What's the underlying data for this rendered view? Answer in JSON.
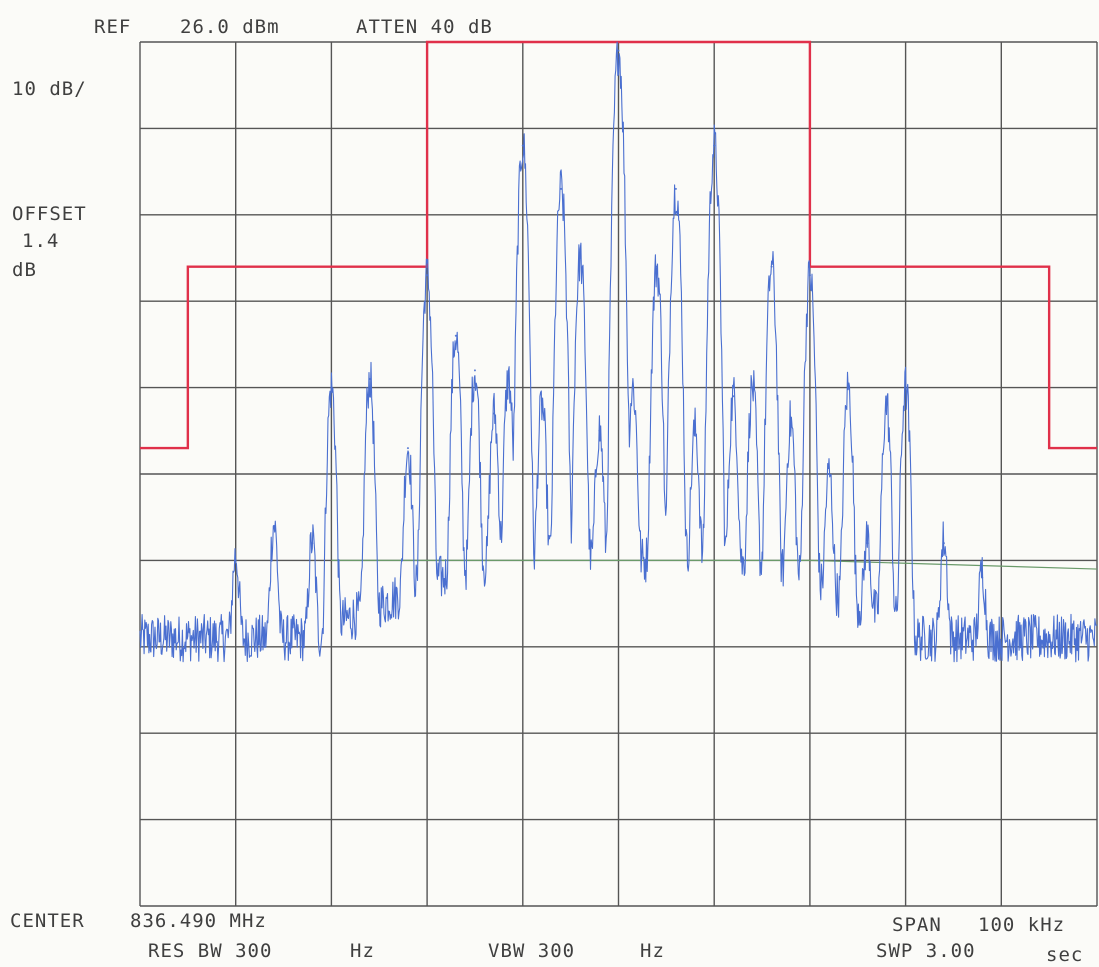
{
  "header": {
    "ref": "REF",
    "ref_value": "26.0 dBm",
    "atten": "ATTEN 40 dB"
  },
  "side": {
    "scale": "10 dB/",
    "offset_label": "OFFSET",
    "offset_value": "1.4",
    "offset_unit": "dB"
  },
  "footer": {
    "center_label": "CENTER",
    "center_value": "836.490 MHz",
    "span_label": "SPAN",
    "span_value": "100 kHz",
    "res_bw": "RES BW 300",
    "res_bw_unit": "Hz",
    "vbw": "VBW 300",
    "vbw_unit": "Hz",
    "swp": "SWP 3.00",
    "swp_unit": "sec"
  },
  "colors": {
    "grid": "#555555",
    "trace": "#4a6fd0",
    "mask": "#e0304a",
    "reference": "#6a9a6a"
  },
  "chart_data": {
    "type": "line",
    "x_units": "kHz offset from center",
    "y_units": "dB relative to reference",
    "xlim": [
      -50,
      50
    ],
    "ylim": [
      -100,
      0
    ],
    "grid_divisions": {
      "x": 10,
      "y": 10
    },
    "series": [
      {
        "kind": "mask",
        "x": [
          -50,
          -45,
          -45,
          -20,
          -20,
          20,
          20,
          45,
          45,
          50
        ],
        "y": [
          -47,
          -47,
          -26,
          -26,
          0,
          0,
          -26,
          -26,
          -47,
          -47
        ]
      },
      {
        "kind": "reference",
        "x": [
          -30,
          20,
          50
        ],
        "y": [
          -60,
          -60,
          -61
        ]
      },
      {
        "kind": "trace",
        "noise_floor": -69,
        "peaks": [
          {
            "x": -40,
            "y": -60
          },
          {
            "x": -36,
            "y": -56
          },
          {
            "x": -32,
            "y": -58
          },
          {
            "x": -30,
            "y": -40
          },
          {
            "x": -26,
            "y": -39
          },
          {
            "x": -22,
            "y": -47
          },
          {
            "x": -20,
            "y": -27
          },
          {
            "x": -17,
            "y": -34
          },
          {
            "x": -15,
            "y": -38
          },
          {
            "x": -13,
            "y": -43
          },
          {
            "x": -11.5,
            "y": -39
          },
          {
            "x": -10,
            "y": -12
          },
          {
            "x": -8,
            "y": -42
          },
          {
            "x": -6,
            "y": -17
          },
          {
            "x": -4,
            "y": -25
          },
          {
            "x": -2,
            "y": -45
          },
          {
            "x": 0,
            "y": -1
          },
          {
            "x": 1.5,
            "y": -40
          },
          {
            "x": 4,
            "y": -26
          },
          {
            "x": 6,
            "y": -17
          },
          {
            "x": 8,
            "y": -45
          },
          {
            "x": 10,
            "y": -12
          },
          {
            "x": 12,
            "y": -41
          },
          {
            "x": 14,
            "y": -40
          },
          {
            "x": 16,
            "y": -26
          },
          {
            "x": 18,
            "y": -44
          },
          {
            "x": 20,
            "y": -27
          },
          {
            "x": 22,
            "y": -50
          },
          {
            "x": 24,
            "y": -40
          },
          {
            "x": 26,
            "y": -58
          },
          {
            "x": 28,
            "y": -42
          },
          {
            "x": 30,
            "y": -40
          },
          {
            "x": 34,
            "y": -58
          },
          {
            "x": 38,
            "y": -62
          }
        ]
      }
    ]
  }
}
